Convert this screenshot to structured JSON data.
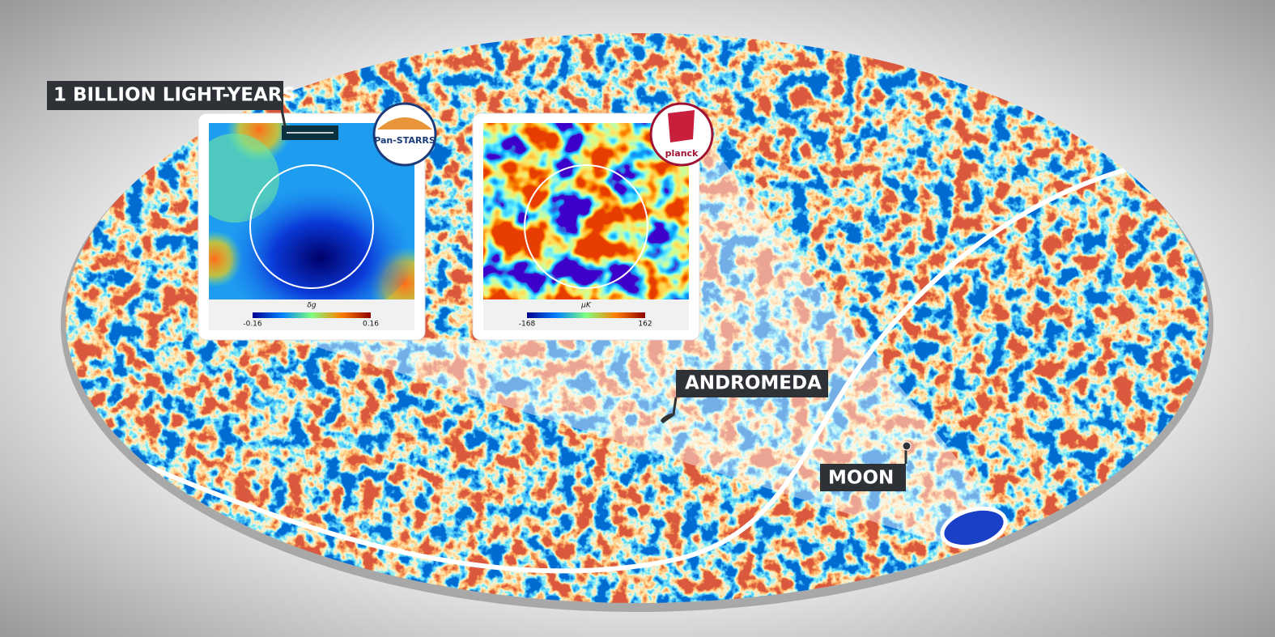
{
  "scale_label": "1 BILLION LIGHT-YEARS",
  "insets": [
    {
      "logo": "Pan-STARRS",
      "colorbar_label": "δg",
      "colorbar_min": "-0.16",
      "colorbar_max": "0.16"
    },
    {
      "logo": "planck",
      "colorbar_label": "μK",
      "colorbar_min": "-168",
      "colorbar_max": "162"
    }
  ],
  "labels": {
    "andromeda": "ANDROMEDA",
    "moon": "MOON"
  }
}
